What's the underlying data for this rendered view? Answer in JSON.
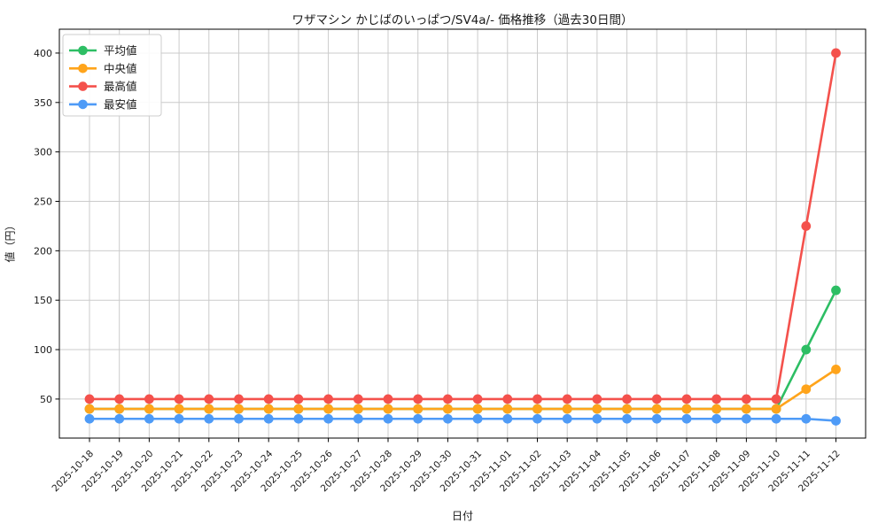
{
  "chart_data": {
    "type": "line",
    "title": "ワザマシン かじばのいっぱつ/SV4a/- 価格推移（過去30日間）",
    "xlabel": "日付",
    "ylabel": "値（円）",
    "x": [
      "2025-10-18",
      "2025-10-19",
      "2025-10-20",
      "2025-10-21",
      "2025-10-22",
      "2025-10-23",
      "2025-10-24",
      "2025-10-25",
      "2025-10-26",
      "2025-10-27",
      "2025-10-28",
      "2025-10-29",
      "2025-10-30",
      "2025-10-31",
      "2025-11-01",
      "2025-11-02",
      "2025-11-03",
      "2025-11-04",
      "2025-11-05",
      "2025-11-06",
      "2025-11-07",
      "2025-11-08",
      "2025-11-09",
      "2025-11-10",
      "2025-11-11",
      "2025-11-12"
    ],
    "yticks": [
      50,
      100,
      150,
      200,
      250,
      300,
      350,
      400
    ],
    "ylim": [
      10,
      420
    ],
    "grid": true,
    "legend_position": "upper-left",
    "series": [
      {
        "key": "average",
        "name": "平均値",
        "color": "#2DBE64",
        "values": [
          40,
          40,
          40,
          40,
          40,
          40,
          40,
          40,
          40,
          40,
          40,
          40,
          40,
          40,
          40,
          40,
          40,
          40,
          40,
          40,
          40,
          40,
          40,
          40,
          100,
          160
        ]
      },
      {
        "key": "median",
        "name": "中央値",
        "color": "#FFA41B",
        "values": [
          40,
          40,
          40,
          40,
          40,
          40,
          40,
          40,
          40,
          40,
          40,
          40,
          40,
          40,
          40,
          40,
          40,
          40,
          40,
          40,
          40,
          40,
          40,
          40,
          60,
          80
        ]
      },
      {
        "key": "max",
        "name": "最高値",
        "color": "#F4514C",
        "values": [
          50,
          50,
          50,
          50,
          50,
          50,
          50,
          50,
          50,
          50,
          50,
          50,
          50,
          50,
          50,
          50,
          50,
          50,
          50,
          50,
          50,
          50,
          50,
          50,
          225,
          400
        ]
      },
      {
        "key": "min",
        "name": "最安値",
        "color": "#4E9BF7",
        "values": [
          30,
          30,
          30,
          30,
          30,
          30,
          30,
          30,
          30,
          30,
          30,
          30,
          30,
          30,
          30,
          30,
          30,
          30,
          30,
          30,
          30,
          30,
          30,
          30,
          30,
          28
        ]
      }
    ],
    "colors": {
      "grid": "#cbcbcb",
      "spine": "#000000",
      "text": "#1a1a1a",
      "legend_border": "#cccccc",
      "legend_bg": "#ffffff"
    }
  }
}
